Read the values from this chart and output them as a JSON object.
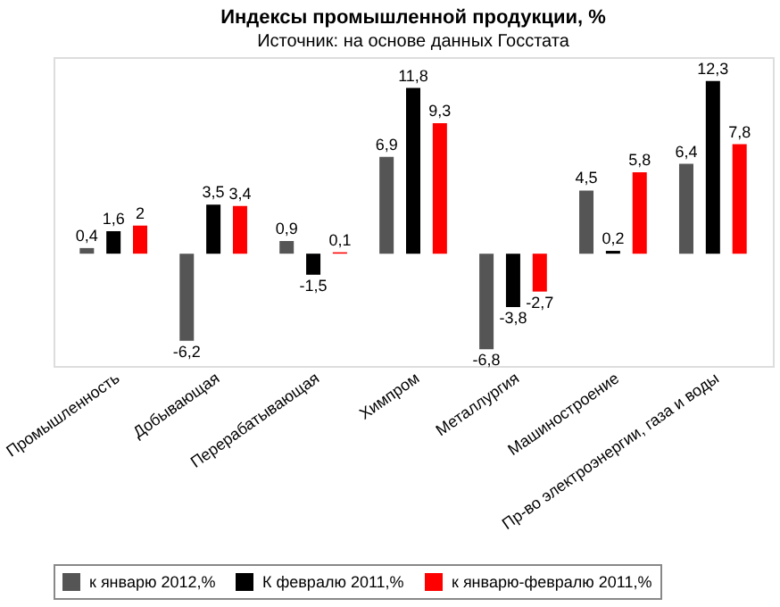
{
  "chart_data": {
    "type": "bar",
    "title": "Индексы промышленной продукции, %",
    "subtitle": "Источник: на основе данных Госстата",
    "categories": [
      "Промышленность",
      "Добывающая",
      "Перерабатывающая",
      "Химпром",
      "Металлургия",
      "Машиностроение",
      "Пр-во электроэнергии, газа и воды"
    ],
    "series": [
      {
        "name": "к январю 2012,%",
        "color": "#555555",
        "values": [
          0.4,
          -6.2,
          0.9,
          6.9,
          -6.8,
          4.5,
          6.4
        ],
        "value_labels": [
          "0,4",
          "-6,2",
          "0,9",
          "6,9",
          "-6,8",
          "4,5",
          "6,4"
        ]
      },
      {
        "name": "К февралю 2011,%",
        "color": "#000000",
        "values": [
          1.6,
          3.5,
          -1.5,
          11.8,
          -3.8,
          0.2,
          12.3
        ],
        "value_labels": [
          "1,6",
          "3,5",
          "-1,5",
          "11,8",
          "-3,8",
          "0,2",
          "12,3"
        ]
      },
      {
        "name": "к январю-февралю 2011,%",
        "color": "#ff0000",
        "values": [
          2,
          3.4,
          0.1,
          9.3,
          -2.7,
          5.8,
          7.8
        ],
        "value_labels": [
          "2",
          "3,4",
          "0,1",
          "9,3",
          "-2,7",
          "5,8",
          "7,8"
        ]
      }
    ],
    "grid": false,
    "legend": "bottom"
  }
}
